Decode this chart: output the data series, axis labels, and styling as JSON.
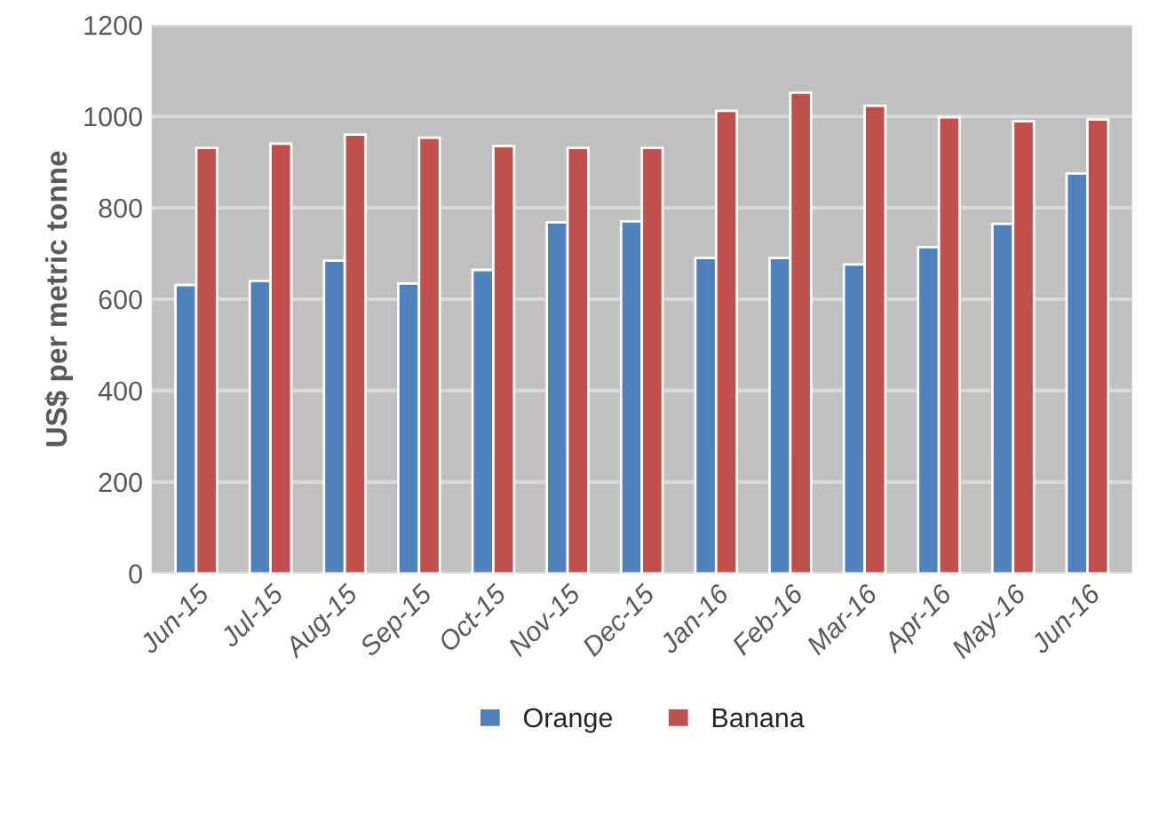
{
  "chart_data": {
    "type": "bar",
    "ylabel": "US$ per metric tonne",
    "categories": [
      "Jun-15",
      "Jul-15",
      "Aug-15",
      "Sep-15",
      "Oct-15",
      "Nov-15",
      "Dec-15",
      "Jan-16",
      "Feb-16",
      "Mar-16",
      "Apr-16",
      "May-16",
      "Jun-16"
    ],
    "series": [
      {
        "name": "Orange",
        "color": "#4f81bd",
        "values": [
          631,
          640,
          684,
          634,
          664,
          768,
          770,
          690,
          690,
          676,
          714,
          765,
          875
        ]
      },
      {
        "name": "Banana",
        "color": "#c0504d",
        "values": [
          931,
          940,
          960,
          953,
          935,
          931,
          931,
          1012,
          1052,
          1023,
          998,
          989,
          993
        ]
      }
    ],
    "ylim": [
      0,
      1200
    ],
    "yticks": [
      0,
      200,
      400,
      600,
      800,
      1000,
      1200
    ],
    "grid": "y",
    "legend": "bottom"
  }
}
